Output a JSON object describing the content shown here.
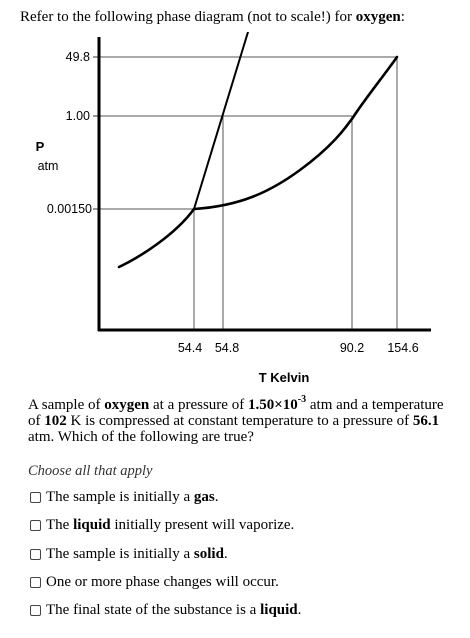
{
  "intro": {
    "text": "Refer to the following phase diagram (not to scale!) for",
    "substance": "oxygen",
    "end": ":"
  },
  "diagram": {
    "y_ticks": [
      "49.8",
      "1.00",
      "0.00150"
    ],
    "x_ticks": [
      "54.4",
      "54.8",
      "90.2",
      "154.6"
    ],
    "y_label_line1": "P",
    "y_label_line2": "atm",
    "x_label": "T Kelvin"
  },
  "question": {
    "p1": "A sample of",
    "substance": "oxygen",
    "p2": "at a pressure of",
    "pressure_mantissa": "1.50×10",
    "pressure_exp": "-3",
    "p3": "atm and a temperature of",
    "temperature": "102",
    "p4": "K is compressed at constant temperature to a pressure of",
    "final_pressure": "56.1",
    "p5": "atm. Which of the following are true?"
  },
  "hint": "Choose all that apply",
  "options": [
    {
      "pre": "The sample is initially a",
      "bold": "gas",
      "post": "."
    },
    {
      "pre": "The",
      "bold": "liquid",
      "post": "initially present will vaporize."
    },
    {
      "pre": "The sample is initially a",
      "bold": "solid",
      "post": "."
    },
    {
      "pre": "One or more phase changes will occur.",
      "bold": "",
      "post": ""
    },
    {
      "pre": "The final state of the substance is a",
      "bold": "liquid",
      "post": "."
    }
  ]
}
